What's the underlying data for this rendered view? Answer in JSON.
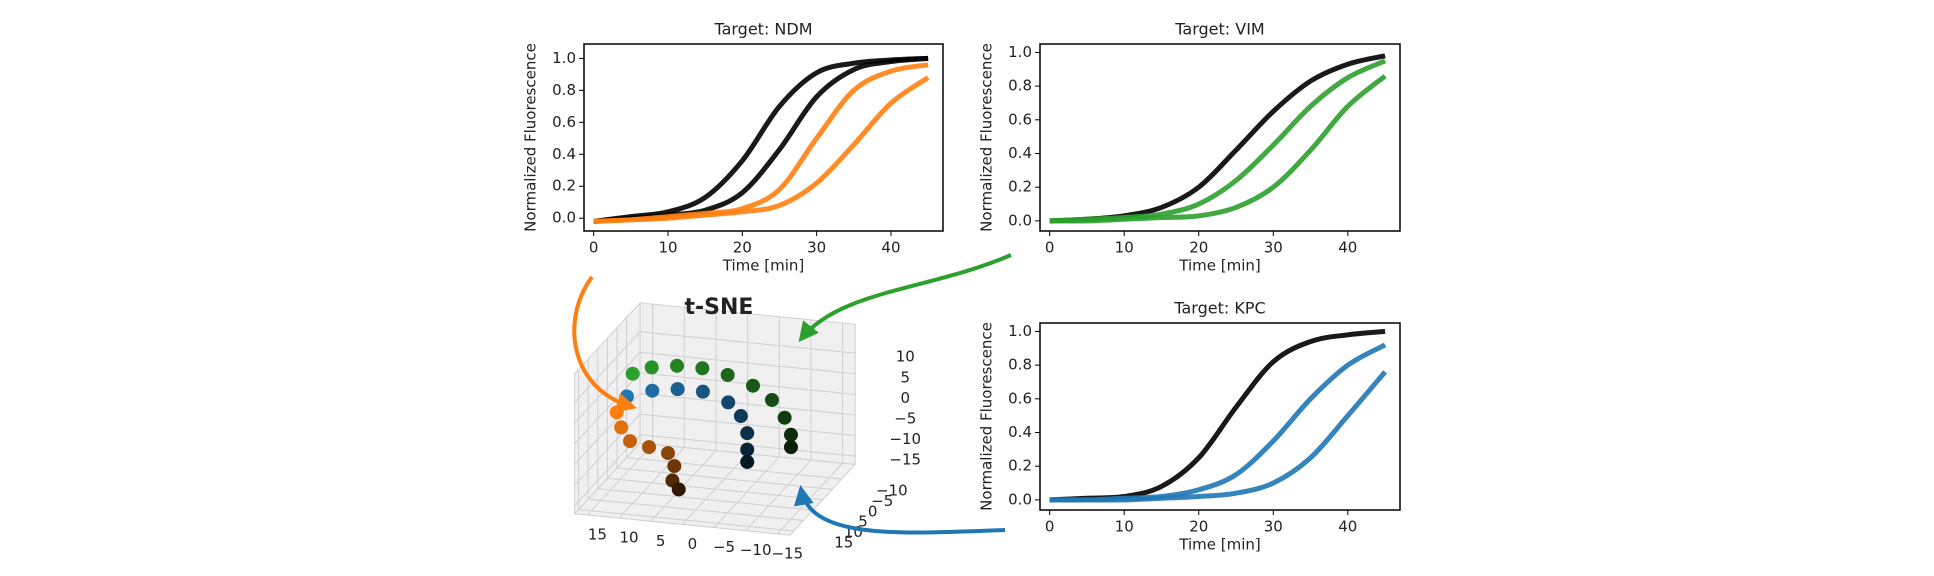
{
  "chart_data": [
    {
      "type": "line",
      "title": "Target: NDM",
      "x_label": "Time [min]",
      "y_label": "Normalized Fluorescence",
      "x": [
        0,
        5,
        10,
        15,
        20,
        25,
        30,
        35,
        40,
        45
      ],
      "series": [
        {
          "color": "#000000",
          "values": [
            -0.02,
            0.01,
            0.04,
            0.13,
            0.36,
            0.7,
            0.91,
            0.97,
            0.99,
            1.0
          ]
        },
        {
          "color": "#000000",
          "values": [
            -0.02,
            0.0,
            0.02,
            0.05,
            0.16,
            0.43,
            0.76,
            0.93,
            0.98,
            1.0
          ]
        },
        {
          "color": "#ff7f0e",
          "values": [
            -0.02,
            -0.01,
            0.01,
            0.03,
            0.06,
            0.18,
            0.5,
            0.8,
            0.92,
            0.96
          ]
        },
        {
          "color": "#ff7f0e",
          "values": [
            -0.02,
            -0.01,
            0.0,
            0.02,
            0.04,
            0.08,
            0.22,
            0.46,
            0.72,
            0.88
          ]
        }
      ],
      "xlim": [
        -1.3,
        47
      ],
      "ylim": [
        -0.08,
        1.09
      ],
      "xticks": [
        0,
        10,
        20,
        30,
        40
      ],
      "yticks": [
        {
          "value": 0,
          "label": "0.0"
        },
        0.2,
        0.4,
        0.6,
        0.8,
        {
          "value": 1,
          "label": "1.0"
        }
      ]
    },
    {
      "type": "line",
      "title": "Target: VIM",
      "x_label": "Time [min]",
      "y_label": "Normalized Fluorescence",
      "x": [
        0,
        5,
        10,
        15,
        20,
        25,
        30,
        35,
        40,
        45
      ],
      "series": [
        {
          "color": "#000000",
          "values": [
            0.0,
            0.01,
            0.03,
            0.08,
            0.2,
            0.42,
            0.65,
            0.83,
            0.93,
            0.98
          ]
        },
        {
          "color": "#2ca02c",
          "values": [
            0.0,
            0.01,
            0.02,
            0.04,
            0.1,
            0.24,
            0.45,
            0.68,
            0.85,
            0.95
          ]
        },
        {
          "color": "#2ca02c",
          "values": [
            0.0,
            0.0,
            0.01,
            0.02,
            0.03,
            0.08,
            0.2,
            0.42,
            0.68,
            0.86
          ]
        }
      ],
      "xlim": [
        -1.3,
        47
      ],
      "ylim": [
        -0.06,
        1.05
      ],
      "xticks": [
        0,
        10,
        20,
        30,
        40
      ],
      "yticks": [
        {
          "value": 0,
          "label": "0.0"
        },
        0.2,
        0.4,
        0.6,
        0.8,
        {
          "value": 1,
          "label": "1.0"
        }
      ]
    },
    {
      "type": "line",
      "title": "Target: KPC",
      "x_label": "Time [min]",
      "y_label": "Normalized Fluorescence",
      "x": [
        0,
        5,
        10,
        15,
        20,
        25,
        30,
        35,
        40,
        45
      ],
      "series": [
        {
          "color": "#000000",
          "values": [
            0.0,
            0.01,
            0.02,
            0.08,
            0.25,
            0.55,
            0.82,
            0.94,
            0.98,
            1.0
          ]
        },
        {
          "color": "#1f77b4",
          "values": [
            0.0,
            0.0,
            0.01,
            0.02,
            0.06,
            0.15,
            0.35,
            0.6,
            0.8,
            0.92
          ]
        },
        {
          "color": "#1f77b4",
          "values": [
            0.0,
            0.0,
            0.0,
            0.01,
            0.02,
            0.04,
            0.1,
            0.25,
            0.5,
            0.76
          ]
        }
      ],
      "xlim": [
        -1.3,
        47
      ],
      "ylim": [
        -0.06,
        1.05
      ],
      "xticks": [
        0,
        10,
        20,
        30,
        40
      ],
      "yticks": [
        {
          "value": 0,
          "label": "0.0"
        },
        0.2,
        0.4,
        0.6,
        0.8,
        {
          "value": 1,
          "label": "1.0"
        }
      ]
    },
    {
      "type": "scatter3d",
      "title": "t-SNE",
      "xlim": [
        -17,
        17
      ],
      "ylim": [
        -17,
        17
      ],
      "zlim": [
        -17,
        17
      ],
      "xticks": [
        15,
        10,
        5,
        0,
        {
          "value": -5,
          "label": "−5"
        },
        {
          "value": -10,
          "label": "−10"
        },
        {
          "value": -15,
          "label": "−15"
        }
      ],
      "yticks": [
        {
          "value": -10,
          "label": "−10"
        },
        {
          "value": -5,
          "label": "−5"
        },
        0,
        5,
        10,
        15
      ],
      "zticks": [
        10,
        5,
        0,
        {
          "value": -5,
          "label": "−5"
        },
        {
          "value": -10,
          "label": "−10"
        },
        {
          "value": -15,
          "label": "−15"
        }
      ],
      "series": [
        {
          "color": "#2ca02c",
          "x": [
            13,
            10,
            6,
            2,
            -2,
            -6,
            -9,
            -11,
            -12,
            -12
          ],
          "y": [
            0,
            0,
            0,
            0,
            0,
            0,
            0,
            0,
            0,
            0
          ],
          "z": [
            9,
            11,
            12,
            12,
            11,
            9,
            6,
            2,
            -2,
            -5
          ]
        },
        {
          "color": "#1f77b4",
          "x": [
            13,
            9,
            5,
            1,
            -3,
            -5,
            -6,
            -6,
            -6
          ],
          "y": [
            3,
            3,
            3,
            3,
            3,
            3,
            3,
            3,
            3
          ],
          "z": [
            5,
            7,
            8,
            8,
            6,
            3,
            -1,
            -5,
            -8
          ]
        },
        {
          "color": "#ff7f0e",
          "x": [
            14,
            13,
            11,
            8,
            5,
            4,
            4,
            3
          ],
          "y": [
            5,
            6,
            8,
            8,
            8,
            8,
            9,
            9
          ],
          "z": [
            2,
            -1,
            -3,
            -4,
            -5,
            -8,
            -11,
            -13
          ]
        }
      ]
    }
  ]
}
